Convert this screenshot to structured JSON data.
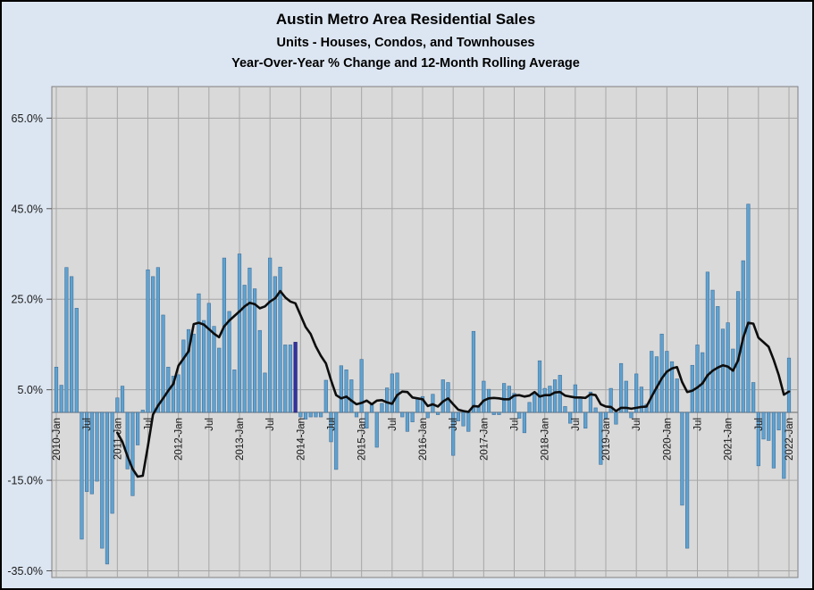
{
  "title": "Austin Metro Area Residential Sales",
  "subtitle1": "Units - Houses, Condos, and Townhouses",
  "subtitle2": "Year-Over-Year % Change and 12-Month Rolling Average",
  "colors": {
    "canvas_bg": "#dce6f2",
    "plot_bg": "#d9d9d9",
    "gridline": "#a6a6a6",
    "plot_border": "#7f7f7f",
    "zero_axis": "#7f7f7f",
    "bar_fill": "#5fa2d0",
    "bar_stroke": "#41719c",
    "highlight_bar_fill": "#3232a0",
    "highlight_bar_stroke": "#1f1f70",
    "line_color": "#0d0d0d"
  },
  "y_axis": {
    "tick_labels": [
      "65.0%",
      "45.0%",
      "25.0%",
      "5.0%",
      "-15.0%",
      "-35.0%"
    ],
    "tick_values": [
      65,
      45,
      25,
      5,
      -15,
      -35
    ],
    "min": -36.5,
    "max": 72
  },
  "x_axis": {
    "tick_labels": [
      "2010-Jan",
      "Jul",
      "2011-Jan",
      "Jul",
      "2012-Jan",
      "Jul",
      "2013-Jan",
      "Jul",
      "2014-Jan",
      "Jul",
      "2015-Jan",
      "Jul",
      "2016-Jan",
      "Jul",
      "2017-Jan",
      "Jul",
      "2018-Jan",
      "Jul",
      "2019-Jan",
      "Jul",
      "2020-Jan",
      "Jul",
      "2021-Jan",
      "Jul",
      "2022-Jan"
    ],
    "tick_month_indices": [
      0,
      6,
      12,
      18,
      24,
      30,
      36,
      42,
      48,
      54,
      60,
      66,
      72,
      78,
      84,
      90,
      96,
      102,
      108,
      114,
      120,
      126,
      132,
      138,
      144
    ]
  },
  "chart_data": {
    "type": "bar",
    "title": "Austin Metro Area Residential Sales",
    "subtitle": "Units - Houses, Condos, and Townhouses — Year-Over-Year % Change and 12-Month Rolling Average",
    "x_start": "2010-Jan",
    "x_freq": "monthly",
    "grid": true,
    "legend": false,
    "ylim": [
      -36.5,
      72
    ],
    "series": [
      {
        "name": "Year-Over-Year % Change",
        "type": "bar",
        "start_month_index": 0,
        "values": [
          10,
          6,
          32,
          30,
          23,
          -28,
          -17.5,
          -18,
          -15.2,
          -30,
          -33.5,
          -22.3,
          3.2,
          5.8,
          -12.5,
          -18.4,
          -7.2,
          0.5,
          31.5,
          30,
          32,
          21.5,
          10,
          8,
          8.3,
          16,
          18.3,
          17.3,
          26.2,
          20.3,
          24.1,
          19,
          14.2,
          34.1,
          22.3,
          9.4,
          35,
          28.1,
          31.9,
          27.3,
          18.1,
          8.7,
          34.1,
          30,
          32.1,
          14.9,
          14.9,
          15.5,
          -1,
          -1.5,
          -1,
          -1,
          -1,
          7.1,
          -6.5,
          -12.6,
          10.3,
          9.4,
          7.2,
          -1,
          11.7,
          -3.5,
          1.9,
          -7.7,
          2,
          5.4,
          8.5,
          8.7,
          -1,
          -4.2,
          -2.1,
          3,
          3.5,
          -1.2,
          4,
          -0.5,
          7.2,
          6.6,
          -9.5,
          -1.9,
          -3,
          -4.2,
          17.9,
          1.3,
          6.9,
          5.1,
          -0.5,
          -0.5,
          6.4,
          5.8,
          4.2,
          -1.3,
          -4.5,
          2.2,
          4,
          11.4,
          5.3,
          5.8,
          7.2,
          8.2,
          1.3,
          -2.4,
          6.1,
          3.3,
          -3.5,
          4.5,
          1,
          -11.5,
          -1.3,
          5.3,
          -2.6,
          10.8,
          6.9,
          -1.2,
          8.5,
          5.6,
          1.8,
          13.5,
          12.3,
          17.3,
          13.5,
          11.2,
          7.4,
          -20.5,
          -30,
          10.4,
          14.9,
          13.2,
          31,
          27,
          23.4,
          18.4,
          19.8,
          14,
          26.7,
          33.5,
          46,
          6.6,
          -11.8,
          -5.9,
          -6.2,
          -12.3,
          -3.9,
          -14.6,
          12
        ]
      },
      {
        "name": "12-Month Rolling Average",
        "type": "line",
        "start_month_index": 12,
        "values": [
          -4.5,
          -6.5,
          -9.7,
          -12.5,
          -14.2,
          -14,
          -7.5,
          -0.5,
          1.5,
          3.1,
          4.8,
          6.3,
          10.3,
          11.9,
          13.5,
          19.5,
          19.8,
          19.4,
          18.4,
          17.4,
          16.6,
          19,
          20.3,
          21.3,
          22.3,
          23.4,
          24.2,
          23.9,
          23,
          23.4,
          24.5,
          25.2,
          26.8,
          25.4,
          24.5,
          24.1,
          21.5,
          18.9,
          17.3,
          14.6,
          12.5,
          10.8,
          7.1,
          3.8,
          3.1,
          3.5,
          2.6,
          1.8,
          2.1,
          2.6,
          1.8,
          2.6,
          2.7,
          2.2,
          1.9,
          3.8,
          4.6,
          4.5,
          3.3,
          3.1,
          2.9,
          1.4,
          1.8,
          1.3,
          2.4,
          3.1,
          1.8,
          0.6,
          0.3,
          0.1,
          1.4,
          1.3,
          2.6,
          3.1,
          3.2,
          3.1,
          2.9,
          2.9,
          3.7,
          3.8,
          3.5,
          3.7,
          4.5,
          3.5,
          3.8,
          3.8,
          4.4,
          4.5,
          3.7,
          3.5,
          3.3,
          3.3,
          3.2,
          4,
          3.8,
          1.8,
          1.3,
          1.2,
          0.3,
          1,
          1,
          0.8,
          1,
          1.2,
          1.3,
          3.5,
          5.5,
          7.5,
          9,
          9.7,
          10,
          6.7,
          4.5,
          4.8,
          5.5,
          6.4,
          8.2,
          9.2,
          9.9,
          10.4,
          10.1,
          9.2,
          11.5,
          16.5,
          19.8,
          19.6,
          16.5,
          15.5,
          14.5,
          11.6,
          8.2,
          3.9,
          4.6
        ]
      }
    ],
    "highlight_bar": {
      "month_index": 47,
      "month": "2013-Dec",
      "value": 15.5
    }
  }
}
